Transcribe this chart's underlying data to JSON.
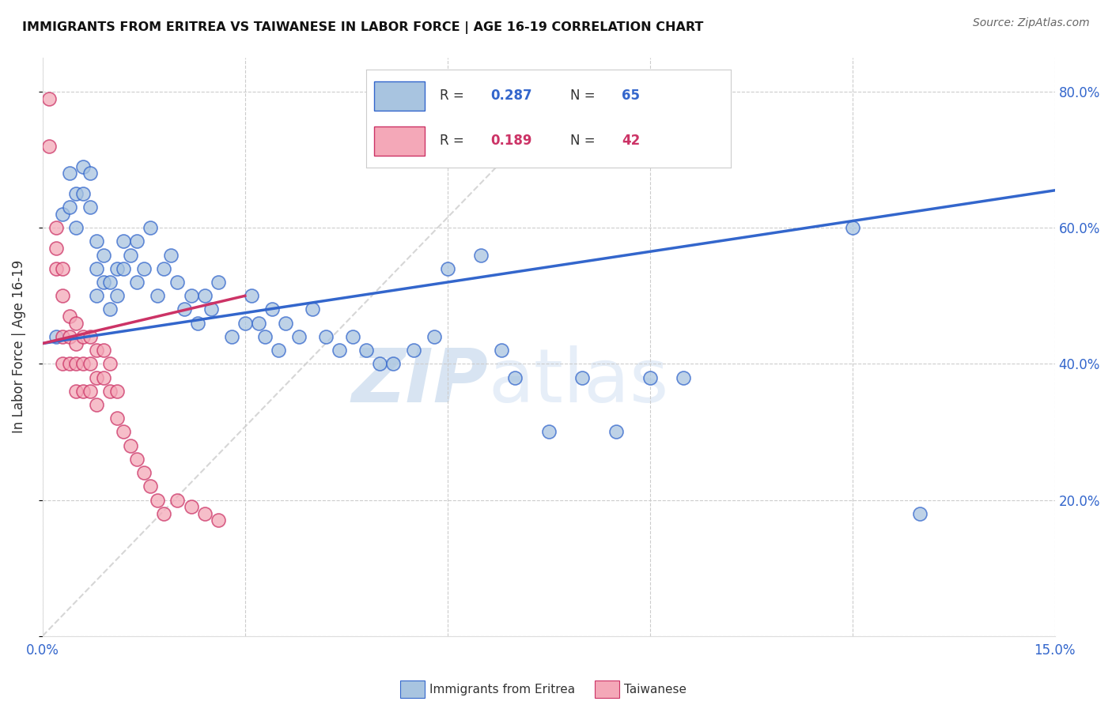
{
  "title": "IMMIGRANTS FROM ERITREA VS TAIWANESE IN LABOR FORCE | AGE 16-19 CORRELATION CHART",
  "source": "Source: ZipAtlas.com",
  "ylabel": "In Labor Force | Age 16-19",
  "legend_label1": "Immigrants from Eritrea",
  "legend_label2": "Taiwanese",
  "r1": 0.287,
  "n1": 65,
  "r2": 0.189,
  "n2": 42,
  "color1": "#a8c4e0",
  "color2": "#f4a8b8",
  "line_color1": "#3366cc",
  "line_color2": "#cc3366",
  "diag_color": "#cccccc",
  "watermark_zip": "ZIP",
  "watermark_atlas": "atlas",
  "xlim": [
    0.0,
    0.15
  ],
  "ylim": [
    0.0,
    0.85
  ],
  "blue_line_x0": 0.0,
  "blue_line_y0": 0.43,
  "blue_line_x1": 0.15,
  "blue_line_y1": 0.655,
  "pink_line_x0": 0.0,
  "pink_line_y0": 0.43,
  "pink_line_x1": 0.03,
  "pink_line_y1": 0.5,
  "blue_scatter_x": [
    0.002,
    0.003,
    0.004,
    0.004,
    0.005,
    0.005,
    0.006,
    0.006,
    0.007,
    0.007,
    0.008,
    0.008,
    0.008,
    0.009,
    0.009,
    0.01,
    0.01,
    0.011,
    0.011,
    0.012,
    0.012,
    0.013,
    0.014,
    0.014,
    0.015,
    0.016,
    0.017,
    0.018,
    0.019,
    0.02,
    0.021,
    0.022,
    0.023,
    0.024,
    0.025,
    0.026,
    0.028,
    0.03,
    0.031,
    0.032,
    0.033,
    0.034,
    0.035,
    0.036,
    0.038,
    0.04,
    0.042,
    0.044,
    0.046,
    0.048,
    0.05,
    0.052,
    0.055,
    0.058,
    0.06,
    0.065,
    0.068,
    0.07,
    0.075,
    0.08,
    0.085,
    0.09,
    0.095,
    0.12,
    0.13
  ],
  "blue_scatter_y": [
    0.44,
    0.62,
    0.63,
    0.68,
    0.6,
    0.65,
    0.65,
    0.69,
    0.63,
    0.68,
    0.5,
    0.54,
    0.58,
    0.52,
    0.56,
    0.48,
    0.52,
    0.5,
    0.54,
    0.54,
    0.58,
    0.56,
    0.52,
    0.58,
    0.54,
    0.6,
    0.5,
    0.54,
    0.56,
    0.52,
    0.48,
    0.5,
    0.46,
    0.5,
    0.48,
    0.52,
    0.44,
    0.46,
    0.5,
    0.46,
    0.44,
    0.48,
    0.42,
    0.46,
    0.44,
    0.48,
    0.44,
    0.42,
    0.44,
    0.42,
    0.4,
    0.4,
    0.42,
    0.44,
    0.54,
    0.56,
    0.42,
    0.38,
    0.3,
    0.38,
    0.3,
    0.38,
    0.38,
    0.6,
    0.18
  ],
  "pink_scatter_x": [
    0.001,
    0.001,
    0.002,
    0.002,
    0.002,
    0.003,
    0.003,
    0.003,
    0.003,
    0.004,
    0.004,
    0.004,
    0.005,
    0.005,
    0.005,
    0.005,
    0.006,
    0.006,
    0.006,
    0.007,
    0.007,
    0.007,
    0.008,
    0.008,
    0.008,
    0.009,
    0.009,
    0.01,
    0.01,
    0.011,
    0.011,
    0.012,
    0.013,
    0.014,
    0.015,
    0.016,
    0.017,
    0.018,
    0.02,
    0.022,
    0.024,
    0.026
  ],
  "pink_scatter_y": [
    0.79,
    0.72,
    0.6,
    0.54,
    0.57,
    0.54,
    0.5,
    0.44,
    0.4,
    0.47,
    0.44,
    0.4,
    0.46,
    0.43,
    0.4,
    0.36,
    0.44,
    0.4,
    0.36,
    0.44,
    0.4,
    0.36,
    0.42,
    0.38,
    0.34,
    0.42,
    0.38,
    0.4,
    0.36,
    0.36,
    0.32,
    0.3,
    0.28,
    0.26,
    0.24,
    0.22,
    0.2,
    0.18,
    0.2,
    0.19,
    0.18,
    0.17
  ]
}
